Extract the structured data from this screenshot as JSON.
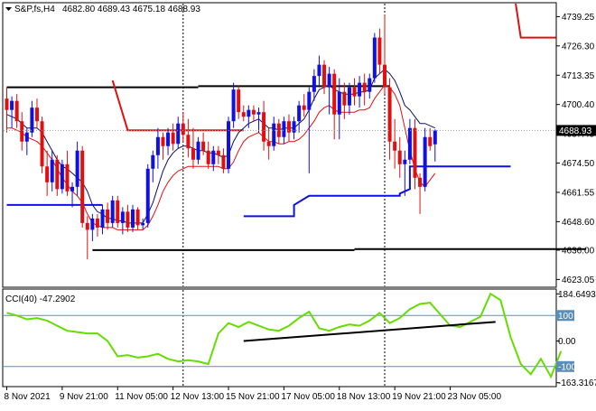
{
  "chart_data": [
    {
      "type": "candlestick",
      "title": "S&P,fs,H4",
      "ohlc_header": "4682.80 4689.43 4675.18 4688.93",
      "last_price_label": "4688.93",
      "last_price": 4688.93,
      "ylim": [
        4620,
        4745
      ],
      "yticks": [
        4739.25,
        4726.3,
        4713.35,
        4700.4,
        4687.45,
        4674.5,
        4661.55,
        4648.6,
        4636.0,
        4623.05
      ],
      "ytick_labels": [
        "4739.25",
        "4726.30",
        "4713.35",
        "4700.40",
        "4687.45",
        "4674.50",
        "4661.55",
        "4648.60",
        "4636.00",
        "4623.05"
      ],
      "xtick_labels": [
        "8 Nov 2021",
        "9 Nov 21:00",
        "11 Nov 05:00",
        "12 Nov 13:00",
        "15 Nov 21:00",
        "17 Nov 05:00",
        "18 Nov 13:00",
        "19 Nov 21:00",
        "23 Nov 05:00"
      ],
      "xtick_index": [
        0,
        11,
        22,
        33,
        44,
        55,
        66,
        77,
        88
      ],
      "vertical_separators": [
        35,
        75
      ],
      "candles": [
        [
          4703,
          4708,
          4688,
          4698
        ],
        [
          4698,
          4704,
          4690,
          4702
        ],
        [
          4702,
          4705,
          4690,
          4693
        ],
        [
          4693,
          4697,
          4680,
          4684
        ],
        [
          4684,
          4690,
          4678,
          4688
        ],
        [
          4688,
          4702,
          4686,
          4699
        ],
        [
          4699,
          4703,
          4690,
          4693
        ],
        [
          4693,
          4695,
          4670,
          4673
        ],
        [
          4673,
          4680,
          4660,
          4666
        ],
        [
          4666,
          4680,
          4662,
          4676
        ],
        [
          4676,
          4678,
          4660,
          4663
        ],
        [
          4663,
          4676,
          4661,
          4674
        ],
        [
          4674,
          4680,
          4660,
          4662
        ],
        [
          4662,
          4666,
          4655,
          4664
        ],
        [
          4664,
          4684,
          4660,
          4680
        ],
        [
          4680,
          4682,
          4646,
          4648
        ],
        [
          4648,
          4651,
          4632,
          4645
        ],
        [
          4645,
          4652,
          4640,
          4650
        ],
        [
          4650,
          4652,
          4642,
          4646
        ],
        [
          4646,
          4656,
          4643,
          4654
        ],
        [
          4654,
          4657,
          4645,
          4648
        ],
        [
          4648,
          4660,
          4646,
          4658
        ],
        [
          4658,
          4660,
          4646,
          4648
        ],
        [
          4648,
          4655,
          4643,
          4653
        ],
        [
          4653,
          4656,
          4644,
          4646
        ],
        [
          4646,
          4656,
          4644,
          4654
        ],
        [
          4654,
          4655,
          4645,
          4647
        ],
        [
          4647,
          4650,
          4645,
          4648
        ],
        [
          4648,
          4674,
          4646,
          4672
        ],
        [
          4672,
          4680,
          4666,
          4678
        ],
        [
          4678,
          4690,
          4672,
          4686
        ],
        [
          4686,
          4688,
          4676,
          4682
        ],
        [
          4682,
          4690,
          4678,
          4688
        ],
        [
          4688,
          4692,
          4680,
          4683
        ],
        [
          4683,
          4695,
          4681,
          4692
        ],
        [
          4692,
          4697,
          4684,
          4687
        ],
        [
          4687,
          4694,
          4677,
          4681
        ],
        [
          4681,
          4690,
          4672,
          4676
        ],
        [
          4676,
          4686,
          4674,
          4684
        ],
        [
          4684,
          4688,
          4678,
          4680
        ],
        [
          4680,
          4684,
          4672,
          4674
        ],
        [
          4674,
          4682,
          4671,
          4680
        ],
        [
          4680,
          4682,
          4674,
          4678
        ],
        [
          4678,
          4681,
          4670,
          4672
        ],
        [
          4672,
          4695,
          4670,
          4693
        ],
        [
          4693,
          4710,
          4690,
          4707
        ],
        [
          4707,
          4709,
          4694,
          4697
        ],
        [
          4697,
          4700,
          4693,
          4695
        ],
        [
          4695,
          4700,
          4690,
          4698
        ],
        [
          4698,
          4700,
          4693,
          4696
        ],
        [
          4696,
          4699,
          4688,
          4697
        ],
        [
          4697,
          4702,
          4680,
          4684
        ],
        [
          4684,
          4690,
          4676,
          4682
        ],
        [
          4682,
          4695,
          4680,
          4692
        ],
        [
          4692,
          4694,
          4683,
          4686
        ],
        [
          4686,
          4695,
          4683,
          4693
        ],
        [
          4693,
          4696,
          4684,
          4688
        ],
        [
          4688,
          4695,
          4685,
          4693
        ],
        [
          4693,
          4702,
          4688,
          4700
        ],
        [
          4700,
          4705,
          4695,
          4698
        ],
        [
          4698,
          4708,
          4670,
          4706
        ],
        [
          4706,
          4716,
          4702,
          4713
        ],
        [
          4713,
          4722,
          4708,
          4718
        ],
        [
          4718,
          4720,
          4705,
          4708
        ],
        [
          4708,
          4717,
          4696,
          4714
        ],
        [
          4714,
          4716,
          4685,
          4696
        ],
        [
          4696,
          4712,
          4685,
          4706
        ],
        [
          4706,
          4710,
          4694,
          4700
        ],
        [
          4700,
          4710,
          4696,
          4708
        ],
        [
          4708,
          4712,
          4700,
          4704
        ],
        [
          4704,
          4713,
          4699,
          4710
        ],
        [
          4710,
          4714,
          4700,
          4706
        ],
        [
          4706,
          4714,
          4703,
          4712
        ],
        [
          4712,
          4732,
          4710,
          4730
        ],
        [
          4730,
          4734,
          4714,
          4718
        ],
        [
          4718,
          4740,
          4705,
          4708
        ],
        [
          4708,
          4712,
          4676,
          4684
        ],
        [
          4684,
          4694,
          4672,
          4680
        ],
        [
          4680,
          4686,
          4668,
          4674
        ],
        [
          4674,
          4680,
          4660,
          4676
        ],
        [
          4676,
          4694,
          4674,
          4690
        ],
        [
          4690,
          4694,
          4663,
          4668
        ],
        [
          4668,
          4670,
          4652,
          4664
        ],
        [
          4664,
          4690,
          4662,
          4686
        ],
        [
          4686,
          4690,
          4680,
          4682
        ],
        [
          4682.8,
          4689.43,
          4675.18,
          4688.93
        ]
      ],
      "fast_ma": [
        4696,
        4695,
        4694,
        4692,
        4690,
        4690,
        4690,
        4688,
        4684,
        4680,
        4676,
        4673,
        4672,
        4670,
        4668,
        4666,
        4662,
        4656,
        4653,
        4652,
        4650,
        4650,
        4649,
        4649,
        4648,
        4648,
        4648,
        4648,
        4652,
        4657,
        4664,
        4671,
        4676,
        4679,
        4681,
        4682,
        4682,
        4681,
        4680,
        4680,
        4679,
        4679,
        4678,
        4677,
        4678,
        4684,
        4688,
        4690,
        4692,
        4693,
        4694,
        4692,
        4690,
        4690,
        4689,
        4690,
        4690,
        4690,
        4692,
        4694,
        4698,
        4703,
        4707,
        4708,
        4709,
        4707,
        4706,
        4705,
        4705,
        4705,
        4706,
        4706,
        4707,
        4712,
        4714,
        4716,
        4714,
        4711,
        4706,
        4700,
        4698,
        4695,
        4692,
        4692,
        4691,
        4690
      ],
      "slow_ma": [
        4690,
        4690,
        4689,
        4688,
        4686,
        4685,
        4684,
        4682,
        4679,
        4676,
        4672,
        4668,
        4665,
        4662,
        4660,
        4657,
        4652,
        4648,
        4647,
        4646,
        4646,
        4646,
        4645,
        4645,
        4645,
        4645,
        4645,
        4645,
        4647,
        4651,
        4656,
        4662,
        4666,
        4669,
        4671,
        4672,
        4673,
        4673,
        4673,
        4673,
        4673,
        4673,
        4673,
        4672,
        4672,
        4675,
        4680,
        4684,
        4686,
        4687,
        4688,
        4686,
        4684,
        4684,
        4683,
        4683,
        4684,
        4684,
        4685,
        4687,
        4690,
        4693,
        4697,
        4699,
        4700,
        4698,
        4697,
        4697,
        4697,
        4697,
        4698,
        4698,
        4699,
        4703,
        4706,
        4709,
        4708,
        4705,
        4700,
        4690,
        4680,
        4672,
        4666,
        4664,
        4667,
        4670
      ],
      "red_levels": [
        {
          "x": [
            21,
            24,
            24,
            47
          ],
          "y": [
            4711,
            4689,
            4689,
            4689
          ]
        },
        {
          "x": [
            101,
            102,
            102,
            109
          ],
          "y": [
            4745,
            4730,
            4730,
            4730
          ]
        }
      ],
      "blue_levels": [
        {
          "x": [
            0,
            19
          ],
          "y": [
            4656,
            4656
          ]
        },
        {
          "x": [
            47,
            57,
            57,
            60,
            60,
            78,
            78,
            80,
            80,
            100
          ],
          "y": [
            4651,
            4651,
            4656,
            4660,
            4660,
            4660,
            4661,
            4663,
            4673,
            4673
          ]
        }
      ],
      "black_levels": [
        {
          "x": [
            0,
            38
          ],
          "y": [
            4708,
            4708
          ]
        },
        {
          "x": [
            38,
            76
          ],
          "y": [
            4708.5,
            4708.5
          ]
        },
        {
          "x": [
            17,
            69
          ],
          "y": [
            4636,
            4636
          ]
        },
        {
          "x": [
            69,
            115
          ],
          "y": [
            4636.5,
            4636.5
          ]
        }
      ]
    },
    {
      "type": "line",
      "title": "CCI(40) -47.2902",
      "ylim": [
        -175,
        200
      ],
      "yticks": [
        184.6493,
        100,
        0.0,
        -100,
        -163.3167
      ],
      "ytick_labels": [
        "184.6493",
        "100",
        "0.00",
        "-100",
        "-163.3167"
      ],
      "highlight_labels": [
        "100",
        "-100"
      ],
      "levels": [
        100,
        -100
      ],
      "series": [
        {
          "color": "#66dd00",
          "x": [
            0,
            2,
            4,
            6,
            8,
            10,
            12,
            14,
            16,
            18,
            20,
            22,
            24,
            26,
            28,
            30,
            32,
            34,
            36,
            38,
            40,
            42,
            44,
            46,
            48,
            50,
            52,
            54,
            56,
            58,
            60,
            62,
            64,
            66,
            68,
            70,
            72,
            74,
            76,
            78,
            80,
            82,
            84,
            86,
            88,
            90,
            92,
            94,
            96,
            98,
            100,
            102,
            104,
            106,
            108,
            110
          ],
          "y": [
            110,
            100,
            85,
            90,
            80,
            60,
            40,
            35,
            30,
            30,
            0,
            -60,
            -55,
            -65,
            -60,
            -50,
            -70,
            -80,
            -75,
            -80,
            -90,
            30,
            70,
            55,
            75,
            60,
            45,
            40,
            60,
            90,
            115,
            50,
            40,
            55,
            65,
            60,
            80,
            110,
            70,
            90,
            125,
            145,
            150,
            105,
            60,
            55,
            75,
            95,
            185,
            160,
            15,
            -90,
            -130,
            -70,
            -140,
            -40
          ]
        }
      ],
      "trendline": {
        "x": [
          47,
          97
        ],
        "y": 0,
        "y_end": 75
      }
    }
  ]
}
